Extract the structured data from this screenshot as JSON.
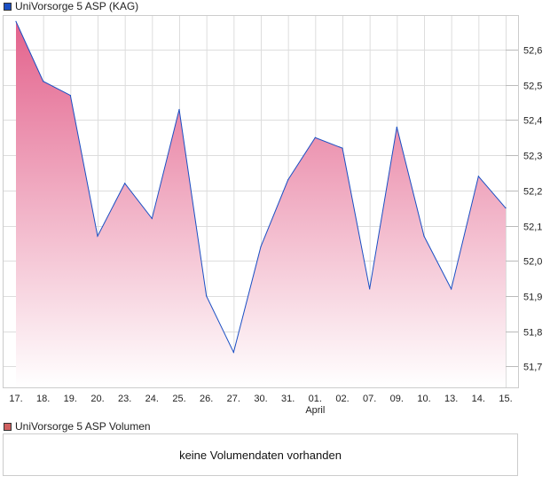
{
  "chart_data": {
    "type": "area",
    "title": "UniVorsorge 5 ASP (KAG)",
    "series_color": "#1a4fc4",
    "fill_top": "#e3628c",
    "categories": [
      "17.",
      "18.",
      "19.",
      "20.",
      "23.",
      "24.",
      "25.",
      "26.",
      "27.",
      "30.",
      "31.",
      "01.",
      "02.",
      "07.",
      "09.",
      "10.",
      "13.",
      "14.",
      "15."
    ],
    "month_label": "April",
    "values": [
      52.68,
      52.51,
      52.47,
      52.07,
      52.22,
      52.12,
      52.43,
      51.9,
      51.74,
      52.04,
      52.23,
      52.35,
      52.32,
      51.92,
      52.38,
      52.07,
      51.92,
      52.24,
      52.15
    ],
    "yticks": [
      "51,7",
      "51,8",
      "51,9",
      "52,0",
      "52,1",
      "52,2",
      "52,3",
      "52,4",
      "52,5",
      "52,6"
    ],
    "ylim": [
      51.64,
      52.7
    ]
  },
  "volume": {
    "legend": "UniVorsorge 5 ASP Volumen",
    "color": "#d06060",
    "message": "keine Volumendaten vorhanden"
  }
}
